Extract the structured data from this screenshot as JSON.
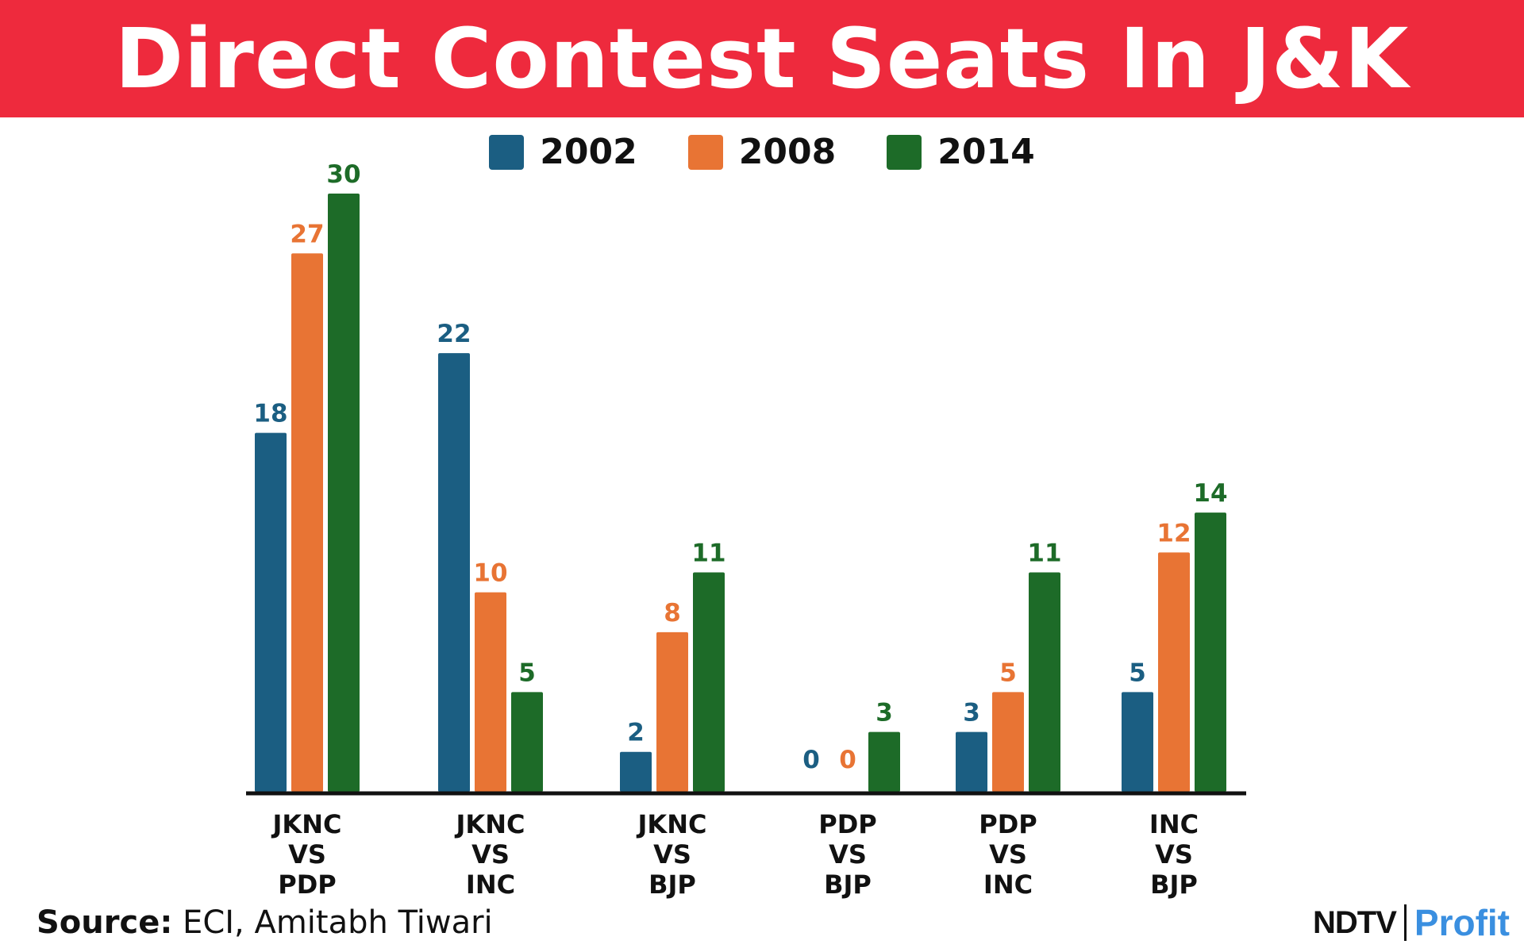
{
  "header": {
    "title": "Direct Contest Seats In J&K"
  },
  "colors": {
    "banner": "#ee2a3d",
    "s2002": "#1b5e82",
    "s2008": "#e87434",
    "s2014": "#1d6b28",
    "axis": "#111111"
  },
  "chart_data": {
    "type": "bar",
    "title": "Direct Contest Seats In J&K",
    "categories": [
      [
        "JKNC",
        "VS",
        "PDP"
      ],
      [
        "JKNC",
        "VS",
        "INC"
      ],
      [
        "JKNC",
        "VS",
        "BJP"
      ],
      [
        "PDP",
        "VS",
        "BJP"
      ],
      [
        "PDP",
        "VS",
        "INC"
      ],
      [
        "INC",
        "VS",
        "BJP"
      ]
    ],
    "series": [
      {
        "name": "2002",
        "color": "#1b5e82",
        "values": [
          18,
          22,
          2,
          0,
          3,
          5
        ]
      },
      {
        "name": "2008",
        "color": "#e87434",
        "values": [
          27,
          10,
          8,
          0,
          5,
          12
        ]
      },
      {
        "name": "2014",
        "color": "#1d6b28",
        "values": [
          30,
          5,
          11,
          3,
          11,
          14
        ]
      }
    ],
    "ylim": [
      0,
      30
    ],
    "grid": false,
    "legend_position": "top-center",
    "data_labels": true
  },
  "footer": {
    "source_label": "Source:",
    "source_text": "ECI, Amitabh Tiwari",
    "brand_ndtv": "NDTV",
    "brand_profit": "Profit"
  }
}
